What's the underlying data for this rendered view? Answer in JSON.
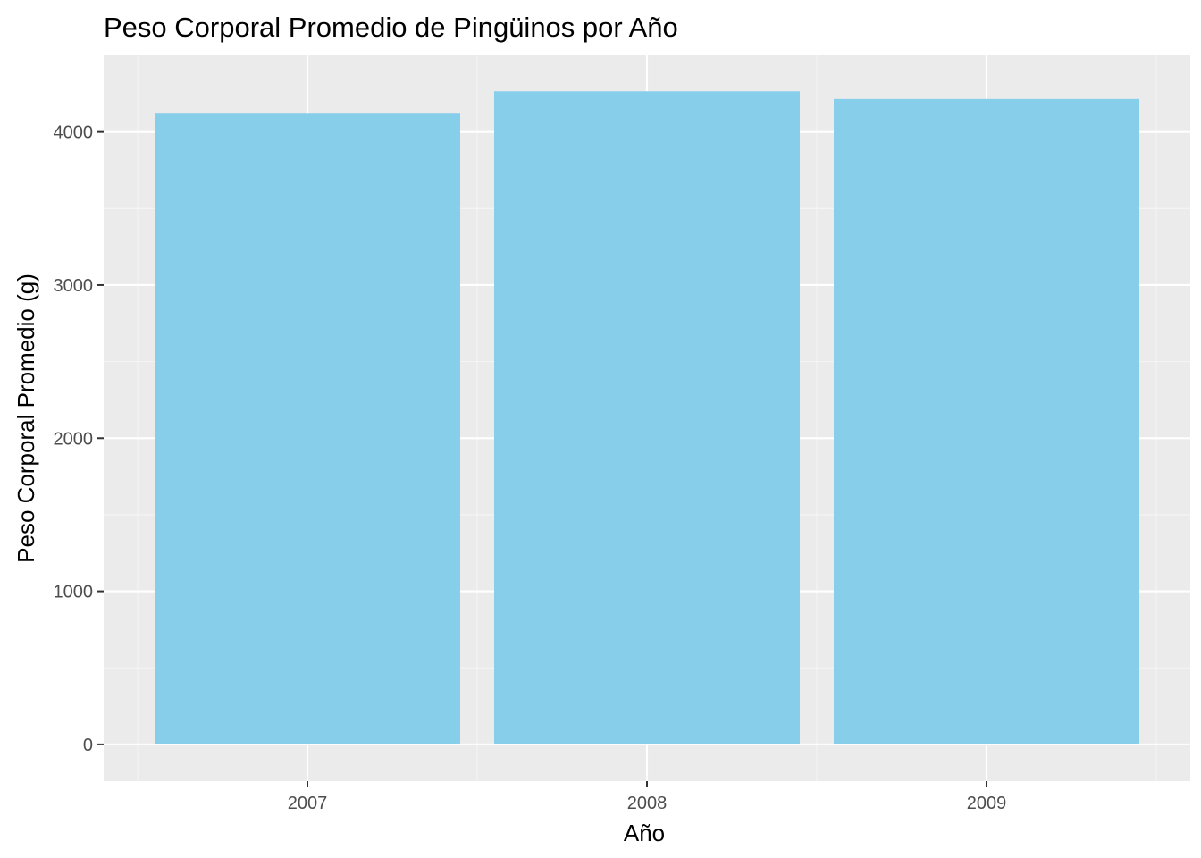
{
  "chart_data": {
    "type": "bar",
    "title": "Peso Corporal Promedio de Pingüinos por Año",
    "xlabel": "Año",
    "ylabel": "Peso Corporal Promedio (g)",
    "categories": [
      "2007",
      "2008",
      "2009"
    ],
    "values": [
      4125,
      4265,
      4215
    ],
    "ylim": [
      -240,
      4500
    ],
    "y_ticks": [
      0,
      1000,
      2000,
      3000,
      4000
    ],
    "y_tick_labels": [
      "0",
      "1000",
      "2000",
      "3000",
      "4000"
    ],
    "grid": true,
    "legend": "none",
    "colors": {
      "bar": "#87ceeb",
      "panel_background": "#ebebeb",
      "grid_major": "#ffffff",
      "grid_minor": "#f5f5f5",
      "tick_mark": "#333333"
    }
  }
}
